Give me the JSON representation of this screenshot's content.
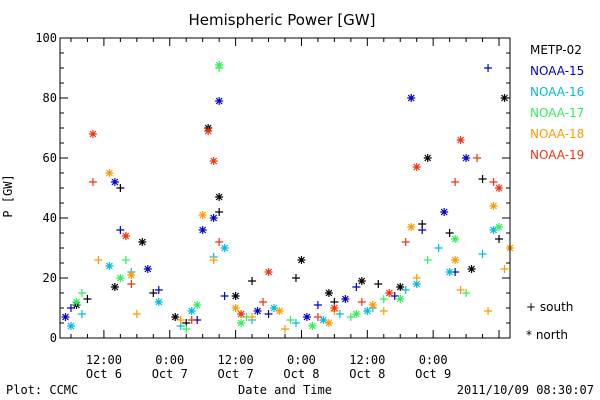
{
  "chart_data": {
    "type": "scatter",
    "title": "Hemispheric Power [GW]",
    "xlabel": "Date and Time",
    "ylabel": "P [GW]",
    "ylim": [
      0,
      100
    ],
    "y_ticks": [
      0,
      20,
      40,
      60,
      80,
      100
    ],
    "xlim": [
      "2011-10-06 04:00",
      "2011-10-09 14:00"
    ],
    "x_ticks": [
      {
        "at": "2011-10-06 12:00",
        "time": "12:00",
        "date": "Oct 6"
      },
      {
        "at": "2011-10-07 00:00",
        "time": "0:00",
        "date": "Oct 7"
      },
      {
        "at": "2011-10-07 12:00",
        "time": "12:00",
        "date": "Oct 7"
      },
      {
        "at": "2011-10-08 00:00",
        "time": "0:00",
        "date": "Oct 8"
      },
      {
        "at": "2011-10-08 12:00",
        "time": "12:00",
        "date": "Oct 8"
      },
      {
        "at": "2011-10-09 00:00",
        "time": "0:00",
        "date": "Oct 9"
      }
    ],
    "marker_legend": [
      {
        "symbol": "+",
        "label": "south"
      },
      {
        "symbol": "*",
        "label": "north"
      }
    ],
    "series": [
      {
        "name": "METP-02",
        "color": "#000000",
        "south": [
          [
            "2011-10-06 09:00",
            13
          ],
          [
            "2011-10-06 15:00",
            50
          ],
          [
            "2011-10-06 21:00",
            15
          ],
          [
            "2011-10-07 03:00",
            5
          ],
          [
            "2011-10-07 09:00",
            42
          ],
          [
            "2011-10-07 15:00",
            19
          ],
          [
            "2011-10-07 23:00",
            20
          ],
          [
            "2011-10-08 06:00",
            12
          ],
          [
            "2011-10-08 14:00",
            18
          ],
          [
            "2011-10-08 22:00",
            38
          ],
          [
            "2011-10-09 03:00",
            35
          ],
          [
            "2011-10-09 09:00",
            53
          ],
          [
            "2011-10-09 12:00",
            33
          ]
        ],
        "north": [
          [
            "2011-10-06 07:00",
            11
          ],
          [
            "2011-10-06 14:00",
            17
          ],
          [
            "2011-10-06 19:00",
            32
          ],
          [
            "2011-10-07 01:00",
            7
          ],
          [
            "2011-10-07 07:00",
            70
          ],
          [
            "2011-10-07 09:00",
            47
          ],
          [
            "2011-10-07 12:00",
            14
          ],
          [
            "2011-10-08 00:00",
            26
          ],
          [
            "2011-10-08 05:00",
            15
          ],
          [
            "2011-10-08 11:00",
            19
          ],
          [
            "2011-10-08 18:00",
            17
          ],
          [
            "2011-10-08 23:00",
            60
          ],
          [
            "2011-10-09 07:00",
            23
          ],
          [
            "2011-10-09 13:00",
            80
          ]
        ]
      },
      {
        "name": "NOAA-15",
        "color": "#0000cc",
        "south": [
          [
            "2011-10-06 06:00",
            10
          ],
          [
            "2011-10-06 15:00",
            36
          ],
          [
            "2011-10-06 22:00",
            16
          ],
          [
            "2011-10-07 05:00",
            6
          ],
          [
            "2011-10-07 10:00",
            14
          ],
          [
            "2011-10-07 18:00",
            8
          ],
          [
            "2011-10-08 03:00",
            11
          ],
          [
            "2011-10-08 10:00",
            17
          ],
          [
            "2011-10-08 17:00",
            14
          ],
          [
            "2011-10-08 22:00",
            36
          ],
          [
            "2011-10-09 04:00",
            22
          ],
          [
            "2011-10-09 10:00",
            90
          ]
        ],
        "north": [
          [
            "2011-10-06 05:00",
            7
          ],
          [
            "2011-10-06 14:00",
            52
          ],
          [
            "2011-10-06 20:00",
            23
          ],
          [
            "2011-10-07 06:00",
            36
          ],
          [
            "2011-10-07 08:00",
            40
          ],
          [
            "2011-10-07 09:00",
            79
          ],
          [
            "2011-10-07 16:00",
            9
          ],
          [
            "2011-10-08 01:00",
            7
          ],
          [
            "2011-10-08 08:00",
            13
          ],
          [
            "2011-10-08 20:00",
            80
          ],
          [
            "2011-10-09 02:00",
            42
          ],
          [
            "2011-10-09 06:00",
            60
          ]
        ]
      },
      {
        "name": "NOAA-16",
        "color": "#00bbdd",
        "south": [
          [
            "2011-10-06 08:00",
            8
          ],
          [
            "2011-10-06 17:00",
            22
          ],
          [
            "2011-10-07 02:00",
            4
          ],
          [
            "2011-10-07 08:00",
            27
          ],
          [
            "2011-10-07 15:00",
            6
          ],
          [
            "2011-10-07 23:00",
            5
          ],
          [
            "2011-10-08 07:00",
            8
          ],
          [
            "2011-10-08 13:00",
            10
          ],
          [
            "2011-10-08 19:00",
            16
          ],
          [
            "2011-10-09 01:00",
            30
          ],
          [
            "2011-10-09 09:00",
            28
          ]
        ],
        "north": [
          [
            "2011-10-06 06:00",
            4
          ],
          [
            "2011-10-06 13:00",
            24
          ],
          [
            "2011-10-06 22:00",
            12
          ],
          [
            "2011-10-07 04:00",
            9
          ],
          [
            "2011-10-07 10:00",
            30
          ],
          [
            "2011-10-07 19:00",
            10
          ],
          [
            "2011-10-08 04:00",
            6
          ],
          [
            "2011-10-08 12:00",
            9
          ],
          [
            "2011-10-08 21:00",
            18
          ],
          [
            "2011-10-09 03:00",
            22
          ],
          [
            "2011-10-09 11:00",
            36
          ]
        ]
      },
      {
        "name": "NOAA-17",
        "color": "#33ee55",
        "south": [
          [
            "2011-10-06 08:00",
            15
          ],
          [
            "2011-10-06 16:00",
            26
          ],
          [
            "2011-10-07 03:00",
            3
          ],
          [
            "2011-10-07 09:00",
            90
          ],
          [
            "2011-10-07 14:00",
            7
          ],
          [
            "2011-10-07 22:00",
            6
          ],
          [
            "2011-10-08 09:00",
            7
          ],
          [
            "2011-10-08 15:00",
            13
          ],
          [
            "2011-10-08 23:00",
            26
          ],
          [
            "2011-10-09 06:00",
            15
          ]
        ],
        "north": [
          [
            "2011-10-06 07:00",
            12
          ],
          [
            "2011-10-06 15:00",
            20
          ],
          [
            "2011-10-07 05:00",
            11
          ],
          [
            "2011-10-07 09:00",
            91
          ],
          [
            "2011-10-07 13:00",
            5
          ],
          [
            "2011-10-08 02:00",
            4
          ],
          [
            "2011-10-08 10:00",
            8
          ],
          [
            "2011-10-08 18:00",
            13
          ],
          [
            "2011-10-09 04:00",
            33
          ],
          [
            "2011-10-09 12:00",
            37
          ]
        ]
      },
      {
        "name": "NOAA-18",
        "color": "#ff9900",
        "south": [
          [
            "2011-10-06 11:00",
            26
          ],
          [
            "2011-10-06 18:00",
            8
          ],
          [
            "2011-10-07 02:00",
            6
          ],
          [
            "2011-10-07 08:00",
            26
          ],
          [
            "2011-10-07 15:00",
            7
          ],
          [
            "2011-10-07 21:00",
            3
          ],
          [
            "2011-10-08 06:00",
            9
          ],
          [
            "2011-10-08 15:00",
            9
          ],
          [
            "2011-10-08 21:00",
            20
          ],
          [
            "2011-10-09 05:00",
            16
          ],
          [
            "2011-10-09 10:00",
            9
          ],
          [
            "2011-10-09 13:00",
            23
          ]
        ],
        "north": [
          [
            "2011-10-06 13:00",
            55
          ],
          [
            "2011-10-06 17:00",
            21
          ],
          [
            "2011-10-07 06:00",
            41
          ],
          [
            "2011-10-07 12:00",
            10
          ],
          [
            "2011-10-07 20:00",
            9
          ],
          [
            "2011-10-08 05:00",
            5
          ],
          [
            "2011-10-08 13:00",
            11
          ],
          [
            "2011-10-08 20:00",
            37
          ],
          [
            "2011-10-09 04:00",
            26
          ],
          [
            "2011-10-09 11:00",
            44
          ],
          [
            "2011-10-09 14:00",
            30
          ]
        ]
      },
      {
        "name": "NOAA-19",
        "color": "#ee3311",
        "south": [
          [
            "2011-10-06 10:00",
            52
          ],
          [
            "2011-10-06 17:00",
            18
          ],
          [
            "2011-10-07 04:00",
            6
          ],
          [
            "2011-10-07 09:00",
            32
          ],
          [
            "2011-10-07 17:00",
            12
          ],
          [
            "2011-10-08 03:00",
            7
          ],
          [
            "2011-10-08 11:00",
            12
          ],
          [
            "2011-10-08 19:00",
            32
          ],
          [
            "2011-10-09 04:00",
            52
          ],
          [
            "2011-10-09 08:00",
            60
          ],
          [
            "2011-10-09 11:00",
            52
          ]
        ],
        "north": [
          [
            "2011-10-06 10:00",
            68
          ],
          [
            "2011-10-06 16:00",
            34
          ],
          [
            "2011-10-07 07:00",
            69
          ],
          [
            "2011-10-07 08:00",
            59
          ],
          [
            "2011-10-07 13:00",
            8
          ],
          [
            "2011-10-07 18:00",
            22
          ],
          [
            "2011-10-08 06:00",
            10
          ],
          [
            "2011-10-08 16:00",
            15
          ],
          [
            "2011-10-08 21:00",
            57
          ],
          [
            "2011-10-09 05:00",
            66
          ],
          [
            "2011-10-09 12:00",
            50
          ]
        ]
      }
    ]
  },
  "footer": {
    "source": "Plot: CCMC",
    "timestamp": "2011/10/09 08:30:07"
  }
}
